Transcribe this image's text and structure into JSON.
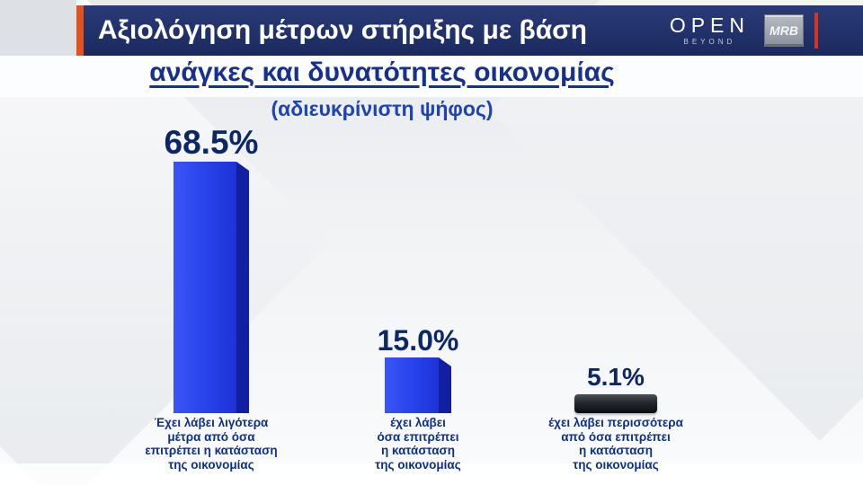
{
  "header": {
    "title_line1": "Αξιολόγηση μέτρων στήριξης με βάση",
    "title_line2": "ανάγκες και δυνατότητες οικονομίας",
    "subtitle": "(αδιευκρίνιστη ψήφος)",
    "channel_logo": "OPEN",
    "channel_tagline": "BEYOND",
    "pollster_logo": "MRB"
  },
  "colors": {
    "header_bg": "#1b2a5e",
    "accent_orange": "#e2521b",
    "accent_red": "#d43420",
    "bar_blue": "#2742ea",
    "bar_blue_side": "#121fa0",
    "bar_dark": "#23272d",
    "value_text": "#0c2766",
    "category_text": "#0e2f86"
  },
  "chart_data": {
    "type": "bar",
    "title": "Αξιολόγηση μέτρων στήριξης με βάση ανάγκες και δυνατότητες οικονομίας",
    "subtitle": "(αδιευκρίνιστη ψήφος)",
    "categories": [
      "Έχει λάβει λιγότερα μέτρα από όσα επιτρέπει η κατάσταση της οικονομίας",
      "έχει λάβει όσα επιτρέπει η κατάσταση της οικονομίας",
      "έχει λάβει περισσότερα από όσα επιτρέπει η κατάσταση της οικονομίας"
    ],
    "values": [
      68.5,
      15.0,
      5.1
    ],
    "value_labels": [
      "68.5%",
      "15.0%",
      "5.1%"
    ],
    "ylim": [
      0,
      100
    ],
    "grid": false,
    "legend": false,
    "bar_colors": [
      "blue",
      "blue",
      "dark"
    ]
  },
  "bars": [
    {
      "value_label": "68.5%",
      "label_lines": [
        "Έχει λάβει λιγότερα",
        "μέτρα από όσα",
        "επιτρέπει η κατάσταση",
        "της οικονομίας"
      ]
    },
    {
      "value_label": "15.0%",
      "label_lines": [
        "έχει λάβει",
        "όσα επιτρέπει",
        "η κατάσταση",
        "της οικονομίας"
      ]
    },
    {
      "value_label": "5.1%",
      "label_lines": [
        "έχει λάβει περισσότερα",
        "από όσα επιτρέπει",
        "η κατάσταση",
        "της οικονομίας"
      ]
    }
  ]
}
